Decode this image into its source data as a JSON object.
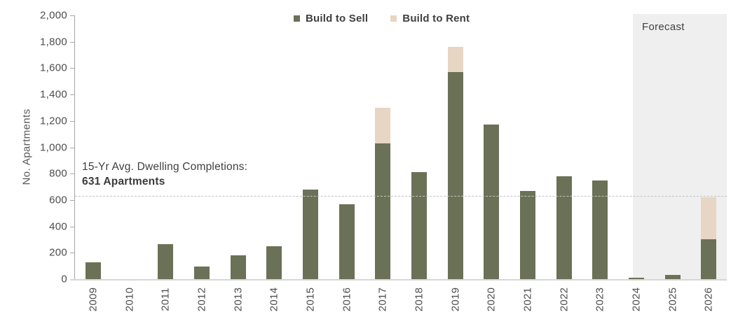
{
  "chart_data": {
    "type": "bar",
    "stacked": true,
    "ylabel": "No. Apartments",
    "ylim": [
      0,
      2000
    ],
    "ytick_step": 200,
    "ytick_labels": [
      "0",
      "200",
      "400",
      "600",
      "800",
      "1,000",
      "1,200",
      "1,400",
      "1,600",
      "1,800",
      "2,000"
    ],
    "grid": "off",
    "legend_position": "top-center",
    "categories": [
      "2009",
      "2010",
      "2011",
      "2012",
      "2013",
      "2014",
      "2015",
      "2016",
      "2017",
      "2018",
      "2019",
      "2020",
      "2021",
      "2022",
      "2023",
      "2024",
      "2025",
      "2026"
    ],
    "series": [
      {
        "name": "Build to Sell",
        "color": "#6a7157",
        "values": [
          125,
          0,
          265,
          95,
          180,
          250,
          680,
          570,
          1030,
          810,
          1570,
          1170,
          670,
          780,
          750,
          10,
          30,
          300
        ]
      },
      {
        "name": "Build to Rent",
        "color": "#e6d6c3",
        "values": [
          0,
          0,
          0,
          0,
          0,
          0,
          0,
          0,
          270,
          0,
          190,
          0,
          0,
          0,
          0,
          0,
          0,
          320
        ]
      }
    ],
    "average_line": {
      "value": 631,
      "label_line1": "15-Yr Avg. Dwelling Completions:",
      "label_line2": "631 Apartments",
      "line_color": "#c3c3c3"
    },
    "forecast": {
      "label": "Forecast",
      "start_category": "2024",
      "end_category": "2026",
      "background": "#efefef"
    }
  }
}
